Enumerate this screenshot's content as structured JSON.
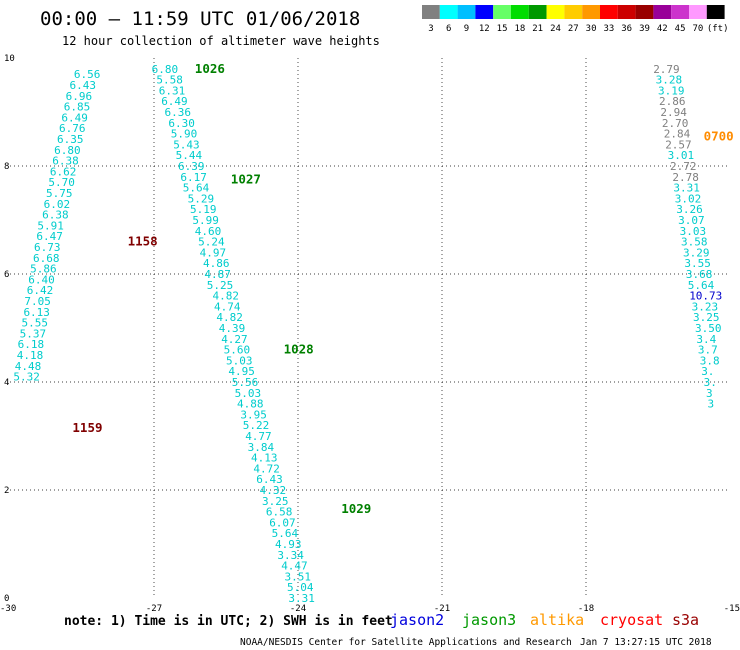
{
  "header": {
    "title": "00:00 – 11:59 UTC 01/06/2018",
    "subtitle": "12 hour collection of altimeter wave heights"
  },
  "color_scale": {
    "labels": [
      "3",
      "6",
      "9",
      "12",
      "15",
      "18",
      "21",
      "24",
      "27",
      "30",
      "33",
      "36",
      "39",
      "42",
      "45",
      "70",
      "(ft)"
    ],
    "colors": [
      "#808080",
      "#00ffff",
      "#00bfff",
      "#0000ff",
      "#66ff66",
      "#00dd00",
      "#009900",
      "#ffff00",
      "#ffcc00",
      "#ff9900",
      "#ff0000",
      "#cc0000",
      "#990000",
      "#990099",
      "#cc33cc",
      "#ff99ff",
      "#000000"
    ]
  },
  "chart_data": {
    "type": "scatter",
    "xlim": [
      -30,
      -15
    ],
    "ylim": [
      0,
      10
    ],
    "x_ticks": [
      -30,
      -27,
      -24,
      -21,
      -18,
      -15
    ],
    "x_tick_labels": [
      "-30",
      "-27",
      "-24",
      "-21",
      "-18",
      "-15"
    ],
    "y_ticks": [
      0,
      2,
      4,
      6,
      8,
      10
    ],
    "y_tick_labels": [
      "0",
      "2",
      "4",
      "6",
      "8",
      "10"
    ],
    "grid": true,
    "tracks": [
      {
        "satellite": "jason3",
        "times": [
          {
            "label": "1158",
            "x": -27.55,
            "y": 6.6,
            "color": "#800000"
          },
          {
            "label": "1159",
            "x": -28.7,
            "y": 3.15,
            "color": "#800000"
          }
        ],
        "points": [
          {
            "x": -28.67,
            "y": 9.7,
            "v": "6.56"
          },
          {
            "x": -28.76,
            "y": 9.5,
            "v": "6.43"
          },
          {
            "x": -28.84,
            "y": 9.3,
            "v": "6.96"
          },
          {
            "x": -28.88,
            "y": 9.1,
            "v": "6.85"
          },
          {
            "x": -28.93,
            "y": 8.9,
            "v": "6.49"
          },
          {
            "x": -28.98,
            "y": 8.7,
            "v": "6.76"
          },
          {
            "x": -29.02,
            "y": 8.5,
            "v": "6.35"
          },
          {
            "x": -29.08,
            "y": 8.3,
            "v": "6.80"
          },
          {
            "x": -29.12,
            "y": 8.1,
            "v": "6.38"
          },
          {
            "x": -29.17,
            "y": 7.9,
            "v": "6.62"
          },
          {
            "x": -29.2,
            "y": 7.7,
            "v": "5.70"
          },
          {
            "x": -29.25,
            "y": 7.5,
            "v": "5.75"
          },
          {
            "x": -29.3,
            "y": 7.3,
            "v": "6.02"
          },
          {
            "x": -29.33,
            "y": 7.1,
            "v": "6.38"
          },
          {
            "x": -29.43,
            "y": 6.9,
            "v": "5.91"
          },
          {
            "x": -29.45,
            "y": 6.7,
            "v": "6.47"
          },
          {
            "x": -29.5,
            "y": 6.5,
            "v": "6.73"
          },
          {
            "x": -29.52,
            "y": 6.3,
            "v": "6.68"
          },
          {
            "x": -29.58,
            "y": 6.1,
            "v": "5.86"
          },
          {
            "x": -29.62,
            "y": 5.9,
            "v": "6.40"
          },
          {
            "x": -29.65,
            "y": 5.7,
            "v": "6.42"
          },
          {
            "x": -29.7,
            "y": 5.5,
            "v": "7.05"
          },
          {
            "x": -29.72,
            "y": 5.3,
            "v": "6.13"
          },
          {
            "x": -29.76,
            "y": 5.1,
            "v": "5.55"
          },
          {
            "x": -29.8,
            "y": 4.9,
            "v": "5.37"
          },
          {
            "x": -29.84,
            "y": 4.7,
            "v": "6.18"
          },
          {
            "x": -29.86,
            "y": 4.5,
            "v": "4.18"
          },
          {
            "x": -29.9,
            "y": 4.3,
            "v": "4.48"
          },
          {
            "x": -29.93,
            "y": 4.1,
            "v": "5.32"
          }
        ]
      },
      {
        "satellite": "jason3",
        "times": [
          {
            "label": "1026",
            "x": -26.15,
            "y": 9.8,
            "color": "#008000"
          },
          {
            "label": "1027",
            "x": -25.4,
            "y": 7.75,
            "color": "#008000"
          },
          {
            "label": "1028",
            "x": -24.3,
            "y": 4.6,
            "color": "#008000"
          },
          {
            "label": "1029",
            "x": -23.1,
            "y": 1.65,
            "color": "#008000"
          }
        ],
        "points": [
          {
            "x": -27.05,
            "y": 9.8,
            "v": "6.80"
          },
          {
            "x": -26.95,
            "y": 9.6,
            "v": "5.58"
          },
          {
            "x": -26.9,
            "y": 9.4,
            "v": "6.31"
          },
          {
            "x": -26.85,
            "y": 9.2,
            "v": "6.49"
          },
          {
            "x": -26.78,
            "y": 9.0,
            "v": "6.36"
          },
          {
            "x": -26.7,
            "y": 8.8,
            "v": "6.30"
          },
          {
            "x": -26.65,
            "y": 8.6,
            "v": "5.90"
          },
          {
            "x": -26.6,
            "y": 8.4,
            "v": "5.43"
          },
          {
            "x": -26.55,
            "y": 8.2,
            "v": "5.44"
          },
          {
            "x": -26.5,
            "y": 8.0,
            "v": "6.39"
          },
          {
            "x": -26.45,
            "y": 7.8,
            "v": "6.17"
          },
          {
            "x": -26.4,
            "y": 7.6,
            "v": "5.64"
          },
          {
            "x": -26.3,
            "y": 7.4,
            "v": "5.29"
          },
          {
            "x": -26.25,
            "y": 7.2,
            "v": "5.19"
          },
          {
            "x": -26.2,
            "y": 7.0,
            "v": "5.99"
          },
          {
            "x": -26.15,
            "y": 6.8,
            "v": "4.60"
          },
          {
            "x": -26.08,
            "y": 6.6,
            "v": "5.24"
          },
          {
            "x": -26.05,
            "y": 6.4,
            "v": "4.97"
          },
          {
            "x": -25.98,
            "y": 6.2,
            "v": "4.86"
          },
          {
            "x": -25.95,
            "y": 6.0,
            "v": "4.87"
          },
          {
            "x": -25.9,
            "y": 5.8,
            "v": "5.25"
          },
          {
            "x": -25.78,
            "y": 5.6,
            "v": "4.82"
          },
          {
            "x": -25.75,
            "y": 5.4,
            "v": "4.74"
          },
          {
            "x": -25.7,
            "y": 5.2,
            "v": "4.82"
          },
          {
            "x": -25.65,
            "y": 5.0,
            "v": "4.39"
          },
          {
            "x": -25.6,
            "y": 4.8,
            "v": "4.27"
          },
          {
            "x": -25.55,
            "y": 4.6,
            "v": "5.60"
          },
          {
            "x": -25.5,
            "y": 4.4,
            "v": "5.03"
          },
          {
            "x": -25.45,
            "y": 4.2,
            "v": "4.95"
          },
          {
            "x": -25.38,
            "y": 4.0,
            "v": "5.56"
          },
          {
            "x": -25.32,
            "y": 3.8,
            "v": "5.03"
          },
          {
            "x": -25.27,
            "y": 3.6,
            "v": "4.88"
          },
          {
            "x": -25.2,
            "y": 3.4,
            "v": "3.95"
          },
          {
            "x": -25.15,
            "y": 3.2,
            "v": "5.22"
          },
          {
            "x": -25.1,
            "y": 3.0,
            "v": "4.77"
          },
          {
            "x": -25.05,
            "y": 2.8,
            "v": "3.84"
          },
          {
            "x": -24.98,
            "y": 2.6,
            "v": "4.13"
          },
          {
            "x": -24.93,
            "y": 2.4,
            "v": "4.72"
          },
          {
            "x": -24.87,
            "y": 2.2,
            "v": "6.43"
          },
          {
            "x": -24.8,
            "y": 2.0,
            "v": "4.32"
          },
          {
            "x": -24.75,
            "y": 1.8,
            "v": "3.25"
          },
          {
            "x": -24.67,
            "y": 1.6,
            "v": "6.58"
          },
          {
            "x": -24.6,
            "y": 1.4,
            "v": "6.07"
          },
          {
            "x": -24.55,
            "y": 1.2,
            "v": "5.64"
          },
          {
            "x": -24.48,
            "y": 1.0,
            "v": "4.93"
          },
          {
            "x": -24.43,
            "y": 0.8,
            "v": "3.34"
          },
          {
            "x": -24.35,
            "y": 0.6,
            "v": "4.47"
          },
          {
            "x": -24.28,
            "y": 0.4,
            "v": "3.51"
          },
          {
            "x": -24.23,
            "y": 0.2,
            "v": "5.04"
          },
          {
            "x": -24.2,
            "y": 0.0,
            "v": "3.31"
          }
        ]
      },
      {
        "satellite": "altika",
        "times": [
          {
            "label": "0700",
            "x": -15.55,
            "y": 8.55,
            "color": "#ff8c00"
          }
        ],
        "points": [
          {
            "x": -16.6,
            "y": 9.8,
            "v": "2.79",
            "c": "#808080"
          },
          {
            "x": -16.55,
            "y": 9.6,
            "v": "3.28",
            "c": "#00cccc"
          },
          {
            "x": -16.5,
            "y": 9.4,
            "v": "3.19",
            "c": "#00cccc"
          },
          {
            "x": -16.48,
            "y": 9.2,
            "v": "2.86",
            "c": "#808080"
          },
          {
            "x": -16.45,
            "y": 9.0,
            "v": "2.94",
            "c": "#808080"
          },
          {
            "x": -16.42,
            "y": 8.8,
            "v": "2.70",
            "c": "#808080"
          },
          {
            "x": -16.38,
            "y": 8.6,
            "v": "2.84",
            "c": "#808080"
          },
          {
            "x": -16.35,
            "y": 8.4,
            "v": "2.57",
            "c": "#808080"
          },
          {
            "x": -16.3,
            "y": 8.2,
            "v": "3.01",
            "c": "#00cccc"
          },
          {
            "x": -16.25,
            "y": 8.0,
            "v": "2.72",
            "c": "#808080"
          },
          {
            "x": -16.2,
            "y": 7.8,
            "v": "2.78",
            "c": "#808080"
          },
          {
            "x": -16.18,
            "y": 7.6,
            "v": "3.31",
            "c": "#00cccc"
          },
          {
            "x": -16.15,
            "y": 7.4,
            "v": "3.02",
            "c": "#00cccc"
          },
          {
            "x": -16.12,
            "y": 7.2,
            "v": "3.26",
            "c": "#00cccc"
          },
          {
            "x": -16.08,
            "y": 7.0,
            "v": "3.07",
            "c": "#00cccc"
          },
          {
            "x": -16.05,
            "y": 6.8,
            "v": "3.03",
            "c": "#00cccc"
          },
          {
            "x": -16.02,
            "y": 6.6,
            "v": "3.58",
            "c": "#00cccc"
          },
          {
            "x": -15.98,
            "y": 6.4,
            "v": "3.29",
            "c": "#00cccc"
          },
          {
            "x": -15.95,
            "y": 6.2,
            "v": "3.55",
            "c": "#00cccc"
          },
          {
            "x": -15.92,
            "y": 6.0,
            "v": "3.68",
            "c": "#00cccc"
          },
          {
            "x": -15.88,
            "y": 5.8,
            "v": "5.64",
            "c": "#00cccc"
          },
          {
            "x": -15.85,
            "y": 5.6,
            "v": "10.73",
            "c": "#0000cc"
          },
          {
            "x": -15.8,
            "y": 5.4,
            "v": "3.23",
            "c": "#00cccc"
          },
          {
            "x": -15.77,
            "y": 5.2,
            "v": "3.25",
            "c": "#00cccc"
          },
          {
            "x": -15.73,
            "y": 5.0,
            "v": "3.50",
            "c": "#00cccc"
          },
          {
            "x": -15.7,
            "y": 4.8,
            "v": "3.4",
            "c": "#00cccc"
          },
          {
            "x": -15.67,
            "y": 4.6,
            "v": "3.7",
            "c": "#00cccc"
          },
          {
            "x": -15.63,
            "y": 4.4,
            "v": "3.8",
            "c": "#00cccc"
          },
          {
            "x": -15.6,
            "y": 4.2,
            "v": "3.",
            "c": "#00cccc"
          },
          {
            "x": -15.55,
            "y": 4.0,
            "v": "3.",
            "c": "#00cccc"
          },
          {
            "x": -15.5,
            "y": 3.8,
            "v": "3",
            "c": "#00cccc"
          },
          {
            "x": -15.47,
            "y": 3.6,
            "v": "3",
            "c": "#00cccc"
          }
        ]
      }
    ]
  },
  "footer": {
    "note": "note: 1) Time is in UTC; 2) SWH is in feet",
    "legend": [
      {
        "name": "jason2",
        "color": "#0000dd"
      },
      {
        "name": "jason3",
        "color": "#009900"
      },
      {
        "name": "altika",
        "color": "#ff9900"
      },
      {
        "name": "cryosat",
        "color": "#ff0000"
      },
      {
        "name": "s3a",
        "color": "#990000"
      }
    ],
    "credit": "NOAA/NESDIS Center for Satellite Applications and Research",
    "timestamp": "Jan  7 13:27:15 UTC 2018"
  }
}
